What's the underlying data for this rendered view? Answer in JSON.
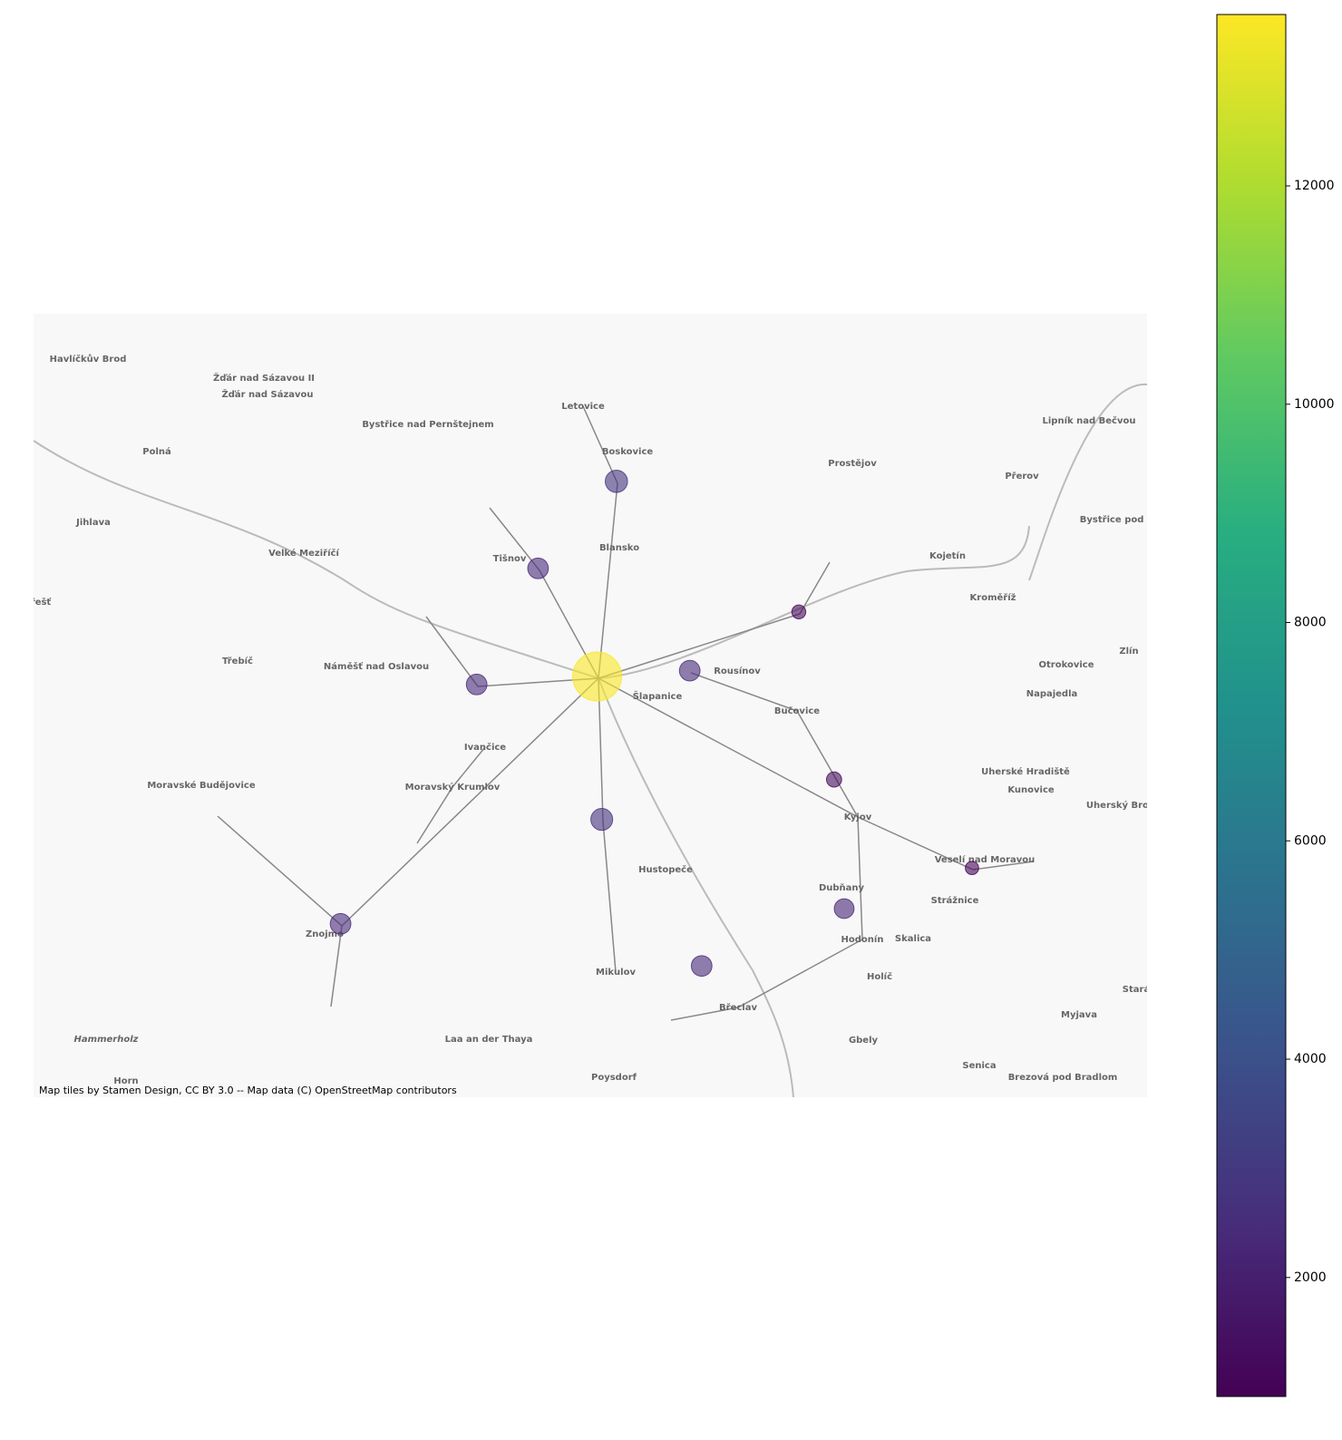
{
  "chart_data": {
    "type": "bubble-map",
    "attribution": "Map tiles by Stamen Design, CC BY 3.0 -- Map data (C) OpenStreetMap contributors",
    "xlim": [
      15.38,
      17.81
    ],
    "ylim": [
      48.62,
      49.7
    ],
    "x": [
      16.652,
      16.481,
      16.347,
      16.61,
      16.812,
      17.05,
      17.127,
      16.62,
      17.149,
      16.838,
      16.05,
      17.428
    ],
    "y": [
      49.469,
      49.349,
      49.189,
      49.2,
      49.208,
      49.289,
      49.058,
      49.003,
      48.88,
      48.801,
      48.859,
      48.936
    ],
    "values": [
      2800,
      2400,
      2400,
      13500,
      2400,
      1100,
      1300,
      2700,
      2200,
      2400,
      2400,
      1000
    ],
    "colormap": "viridis",
    "clim": [
      910,
      13570
    ],
    "cticks": [
      2000,
      4000,
      6000,
      8000,
      10000,
      12000
    ],
    "place_labels": [
      "Havlíčkův Brod",
      "Žďár nad Sázavou II",
      "Žďár nad Sázavou",
      "Bystřice nad Pernštejnem",
      "Letovice",
      "Boskovice",
      "Polná",
      "Prostějov",
      "Přerov",
      "Lipník nad Bečvou",
      "Jihlava",
      "Velké Meziříčí",
      "Blansko",
      "Tišnov",
      "Kojetín",
      "Bystřice pod H",
      "Kroměříž",
      "řešť",
      "Rousínov",
      "Třebíč",
      "Náměšť nad Oslavou",
      "Šlapanice",
      "Bučovice",
      "Otrokovice",
      "Napajedla",
      "Zlín",
      "Ivančice",
      "Moravské Budějovice",
      "Moravský Krumlov",
      "Uherské Hradiště",
      "Kunovice",
      "Uherský Brod",
      "Kyjov",
      "Hustopeče",
      "Veselí nad Moravou",
      "Dubňany",
      "Strážnice",
      "Znojmo",
      "Hodonín",
      "Skalica",
      "Mikulov",
      "Holíč",
      "Stará",
      "Břeclav",
      "Myjava",
      "Hammerholz",
      "Laa an der Thaya",
      "Gbely",
      "Senica",
      "Horn",
      "Poysdorf",
      "Brezová pod Bradlom"
    ]
  }
}
